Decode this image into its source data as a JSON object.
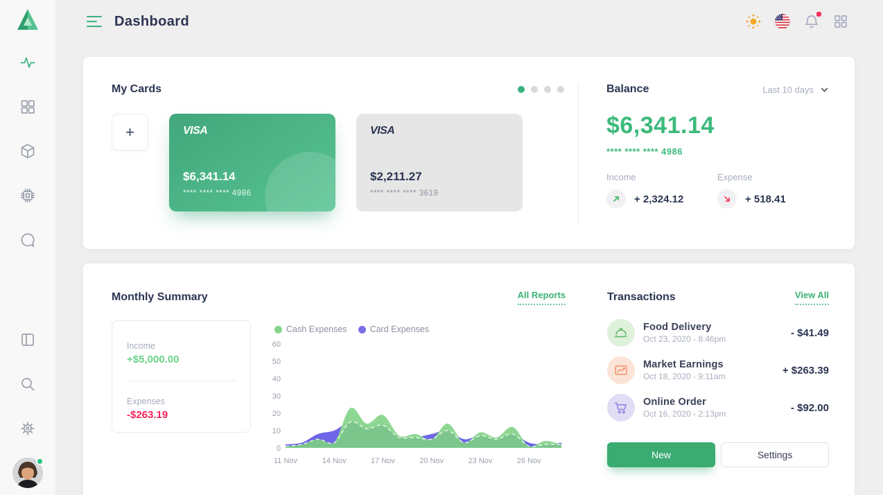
{
  "colors": {
    "accent_green": "#3bb27d",
    "navy": "#2b3452",
    "red": "#f2405f",
    "purple": "#6c63e8",
    "chart_cash_green": "#8ed793",
    "chart_overlap_green": "#7cc68c"
  },
  "header": {
    "title": "Dashboard"
  },
  "my_cards": {
    "title": "My Cards",
    "add_label": "+",
    "cards": [
      {
        "brand": "VISA",
        "amount": "$6,341.14",
        "number": "**** **** **** 4986"
      },
      {
        "brand": "VISA",
        "amount": "$2,211.27",
        "number": "**** **** **** 3619"
      }
    ]
  },
  "balance": {
    "title": "Balance",
    "period": "Last 10 days",
    "amount": "$6,341.14",
    "card_number": "**** **** **** 4986",
    "income_label": "Income",
    "income_value": "+ 2,324.12",
    "expense_label": "Expense",
    "expense_value": "+ 518.41"
  },
  "monthly_summary": {
    "title": "Monthly Summary",
    "link": "All Reports",
    "income_label": "Income",
    "income_value": "+$5,000.00",
    "expenses_label": "Expenses",
    "expenses_value": "-$263.19"
  },
  "chart_data": {
    "type": "area",
    "x_days": [
      11,
      12,
      13,
      14,
      15,
      16,
      17,
      18,
      19,
      20,
      21,
      22,
      23,
      24,
      25,
      26,
      27,
      28
    ],
    "series": [
      {
        "name": "Cash Expenses",
        "color": "#85d68a",
        "fill": "#8ed793",
        "values": [
          1,
          2,
          5,
          3,
          23,
          14,
          19,
          7,
          8,
          5,
          14,
          3,
          9,
          6,
          12,
          1,
          4,
          2
        ]
      },
      {
        "name": "Card Expenses",
        "color": "#7a6fe3",
        "fill": "#6e66e6",
        "values": [
          2,
          3,
          8,
          10,
          15,
          11,
          13,
          6,
          6,
          8,
          10,
          5,
          7,
          5,
          8,
          3,
          2,
          3
        ]
      }
    ],
    "ylim": [
      0,
      60
    ],
    "yticks": [
      0,
      10,
      20,
      30,
      40,
      50,
      60
    ],
    "xticks": [
      "11 Nov",
      "14 Nov",
      "17 Nov",
      "20 Nov",
      "23 Nov",
      "26 Nov"
    ],
    "legend_position": "top",
    "grid": false
  },
  "transactions": {
    "title": "Transactions",
    "link": "View All",
    "items": [
      {
        "name": "Food Delivery",
        "date": "Oct 23, 2020 - 8:46pm",
        "amount": "- $41.49"
      },
      {
        "name": "Market Earnings",
        "date": "Oct 18, 2020 - 9:11am",
        "amount": "+ $263.39"
      },
      {
        "name": "Online Order",
        "date": "Oct 16, 2020 - 2:13pm",
        "amount": "- $92.00"
      }
    ],
    "buttons": {
      "new": "New",
      "settings": "Settings"
    }
  }
}
